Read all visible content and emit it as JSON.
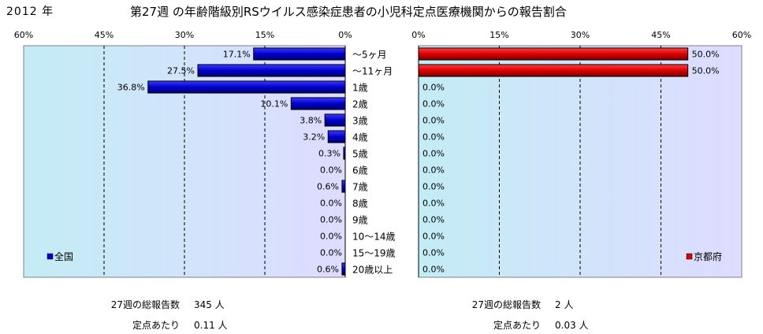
{
  "header": {
    "year": "2012 年",
    "title": "第27週 の年齢階級別RSウイルス感染症患者の小児科定点医療機関からの報告割合"
  },
  "chart_data": [
    {
      "type": "bar",
      "orientation": "horizontal",
      "direction": "right-to-left",
      "xlim": [
        0,
        60
      ],
      "x_ticks": [
        "0%",
        "15%",
        "30%",
        "45%",
        "60%"
      ],
      "categories": [
        "～5ヶ月",
        "～11ヶ月",
        "1歳",
        "2歳",
        "3歳",
        "4歳",
        "5歳",
        "6歳",
        "7歳",
        "8歳",
        "9歳",
        "10～14歳",
        "15～19歳",
        "20歳以上"
      ],
      "series": [
        {
          "name": "全国",
          "color": "#0000cc",
          "values": [
            17.1,
            27.5,
            36.8,
            10.1,
            3.8,
            3.2,
            0.3,
            0.0,
            0.6,
            0.0,
            0.0,
            0.0,
            0.0,
            0.6
          ],
          "labels": [
            "17.1%",
            "27.5%",
            "36.8%",
            "10.1%",
            "3.8%",
            "3.2%",
            "0.3%",
            "0.0%",
            "0.6%",
            "0.0%",
            "0.0%",
            "0.0%",
            "0.0%",
            "0.6%"
          ]
        }
      ],
      "grid": true,
      "legend": "bottom-left"
    },
    {
      "type": "bar",
      "orientation": "horizontal",
      "direction": "left-to-right",
      "xlim": [
        0,
        60
      ],
      "x_ticks": [
        "0%",
        "15%",
        "30%",
        "45%",
        "60%"
      ],
      "categories": [
        "～5ヶ月",
        "～11ヶ月",
        "1歳",
        "2歳",
        "3歳",
        "4歳",
        "5歳",
        "6歳",
        "7歳",
        "8歳",
        "9歳",
        "10～14歳",
        "15～19歳",
        "20歳以上"
      ],
      "series": [
        {
          "name": "京都府",
          "color": "#dd0000",
          "values": [
            50.0,
            50.0,
            0.0,
            0.0,
            0.0,
            0.0,
            0.0,
            0.0,
            0.0,
            0.0,
            0.0,
            0.0,
            0.0,
            0.0
          ],
          "labels": [
            "50.0%",
            "50.0%",
            "0.0%",
            "0.0%",
            "0.0%",
            "0.0%",
            "0.0%",
            "0.0%",
            "0.0%",
            "0.0%",
            "0.0%",
            "0.0%",
            "0.0%",
            "0.0%"
          ]
        }
      ],
      "grid": true,
      "legend": "bottom-right"
    }
  ],
  "stats": {
    "national": {
      "total_label": "27週の総報告数",
      "total_value": "345 人",
      "per_site_label": "定点あたり",
      "per_site_value": "0.11 人"
    },
    "kyoto": {
      "total_label": "27週の総報告数",
      "total_value": "2 人",
      "per_site_label": "定点あたり",
      "per_site_value": "0.03 人"
    }
  }
}
